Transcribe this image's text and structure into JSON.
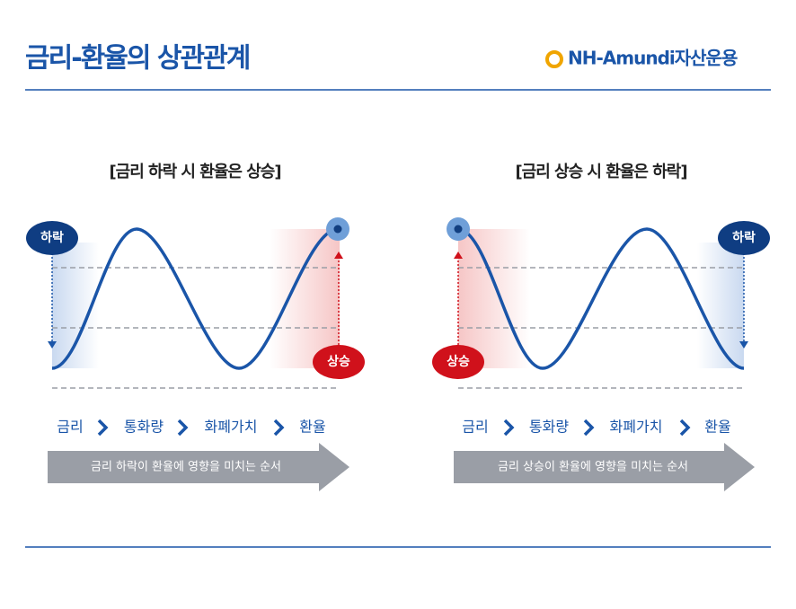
{
  "header": {
    "title": "금리-환율의 상관관계",
    "logo": "NH-Amundi자산운용"
  },
  "panels": [
    {
      "title": "[금리 하락 시 환율은 상승]",
      "start_badge": "하락",
      "end_badge": "상승",
      "flow": [
        "금리",
        "통화량",
        "화폐가치",
        "환율"
      ],
      "arrow_text": "금리 하락이 환율에 영향을 미치는 순서"
    },
    {
      "title": "[금리 상승 시 환율은 하락]",
      "start_badge": "상승",
      "end_badge": "하락",
      "flow": [
        "금리",
        "통화량",
        "화폐가치",
        "환율"
      ],
      "arrow_text": "금리 상승이 환율에 영향을 미치는 순서"
    }
  ]
}
